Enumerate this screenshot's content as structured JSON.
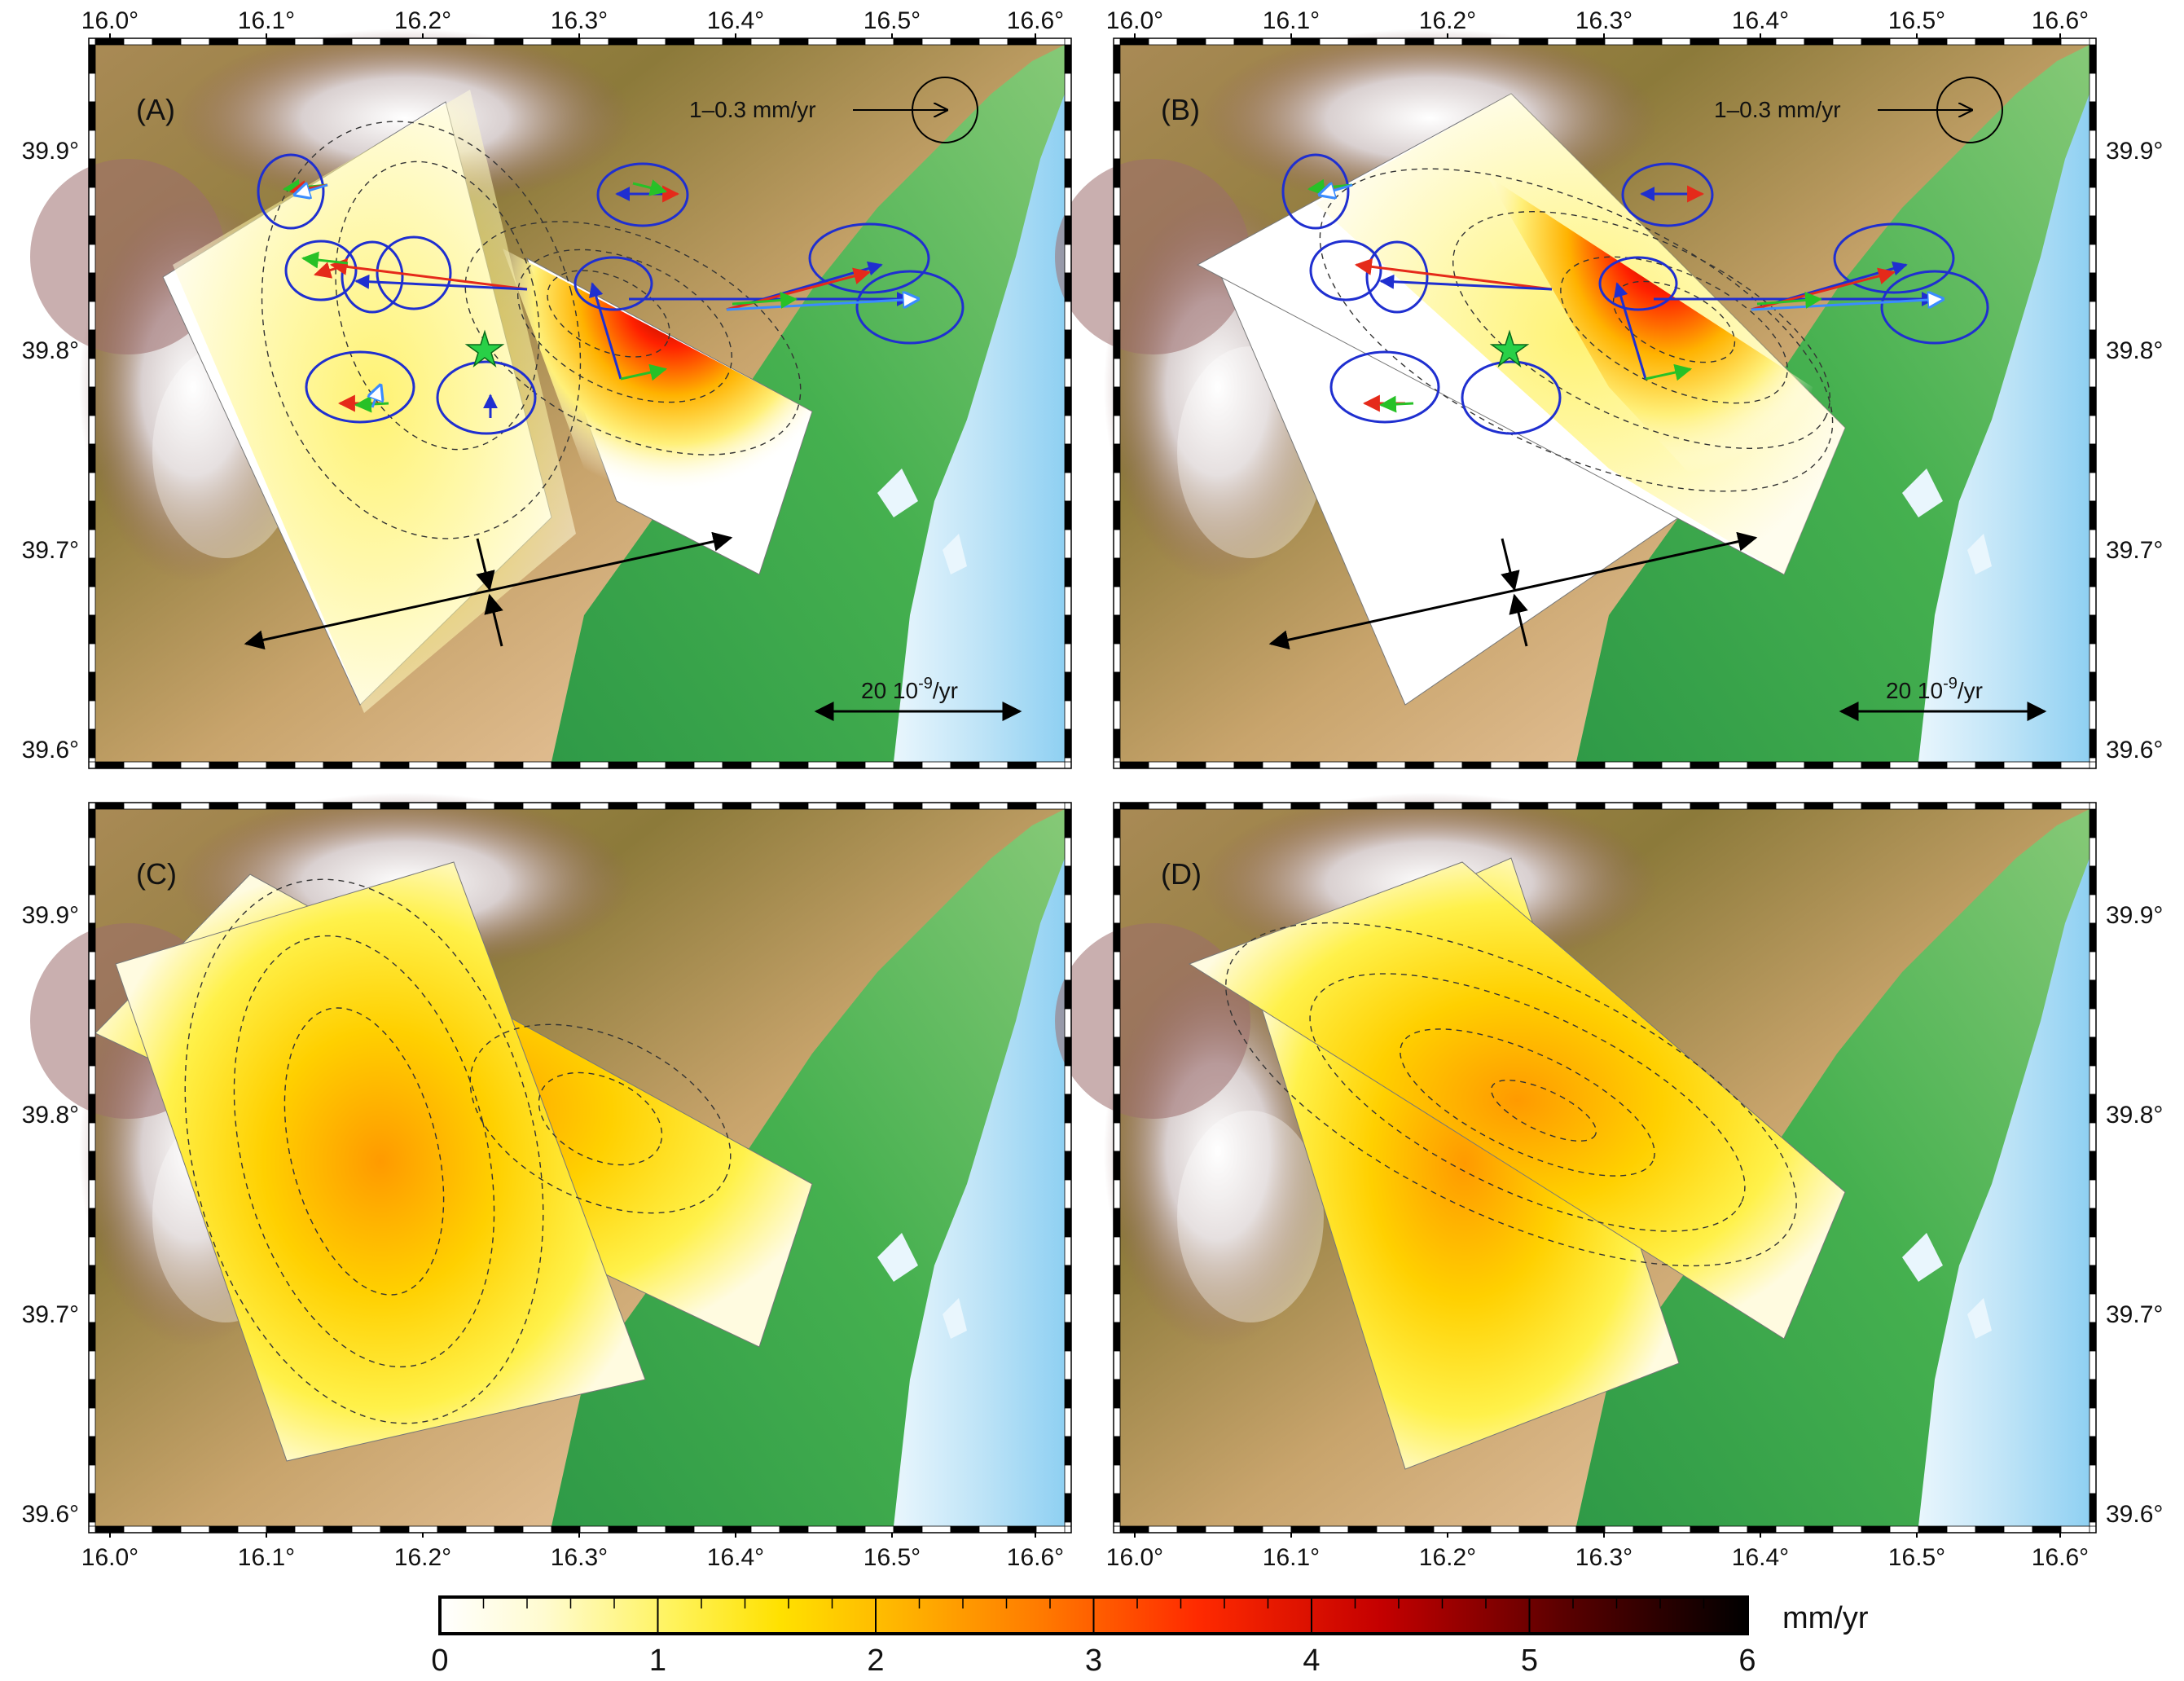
{
  "panels": [
    {
      "label": "(A)",
      "velocity_scale": "1–0.3 mm/yr",
      "strain_scale": "20 10",
      "strain_scale_exp": "-9",
      "strain_scale_unit": "/yr"
    },
    {
      "label": "(B)",
      "velocity_scale": "1–0.3 mm/yr",
      "strain_scale": "20 10",
      "strain_scale_exp": "-9",
      "strain_scale_unit": "/yr"
    },
    {
      "label": "(C)"
    },
    {
      "label": "(D)"
    }
  ],
  "axes": {
    "lon_ticks": [
      "16.0°",
      "16.1°",
      "16.2°",
      "16.3°",
      "16.4°",
      "16.5°",
      "16.6°"
    ],
    "lat_ticks": [
      "39.9°",
      "39.8°",
      "39.7°",
      "39.6°"
    ]
  },
  "colorbar": {
    "unit": "mm/yr",
    "ticks": [
      "0",
      "1",
      "2",
      "3",
      "4",
      "5",
      "6"
    ],
    "range": [
      0,
      6
    ],
    "colors": [
      "#ffffff",
      "#fff49a",
      "#ffe600",
      "#ff9a00",
      "#ff2a00",
      "#b30000",
      "#000000"
    ]
  },
  "colors": {
    "gps_ellipse": "#1f2fd0",
    "observed_arrow": "#1f2fd0",
    "model_arrow_red": "#e52a1a",
    "model_arrow_green": "#27c127",
    "model_arrow_lightblue": "#3a8cff",
    "epicenter": "#29d047",
    "sea": "#bfe4f7"
  }
}
